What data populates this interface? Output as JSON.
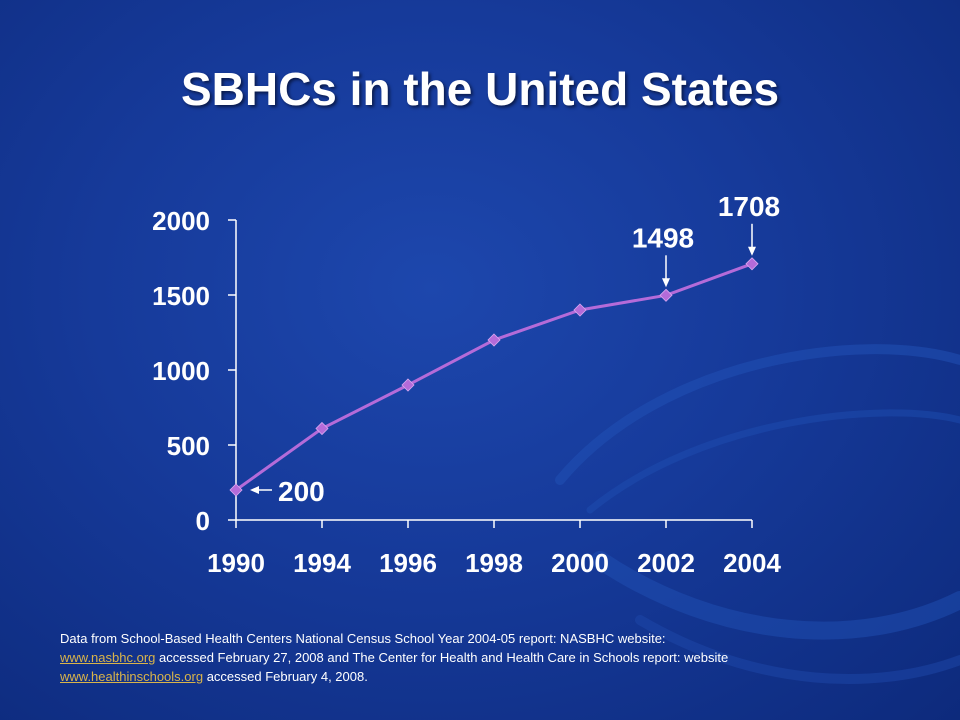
{
  "slide": {
    "title": "SBHCs in the United States"
  },
  "chart_data": {
    "type": "line",
    "title": "SBHCs in the United States",
    "xlabel": "",
    "ylabel": "",
    "categories": [
      "1990",
      "1994",
      "1996",
      "1998",
      "2000",
      "2002",
      "2004"
    ],
    "series": [
      {
        "values": [
          200,
          610,
          900,
          1200,
          1400,
          1498,
          1708
        ]
      }
    ],
    "ylim": [
      0,
      2000
    ],
    "yticks": [
      0,
      500,
      1000,
      1500,
      2000
    ],
    "grid": false,
    "legend": "none",
    "annotations": [
      {
        "text": "200",
        "index": 0,
        "arrow": "left"
      },
      {
        "text": "1498",
        "index": 5,
        "arrow": "down"
      },
      {
        "text": "1708",
        "index": 6,
        "arrow": "down"
      }
    ],
    "colors": {
      "line": "#b46bd9",
      "marker": "#b46bd9",
      "axis": "#ffffff",
      "text": "#ffffff"
    }
  },
  "footnote": {
    "line1": "Data from School-Based Health Centers National Census School Year 2004-05 report:  NASBHC website:",
    "link1": "www.nasbhc.org",
    "line2": " accessed February 27, 2008 and The Center for Health and Health Care in Schools report: website",
    "link2": "www.healthinschools.org",
    "line3": " accessed February 4, 2008."
  }
}
